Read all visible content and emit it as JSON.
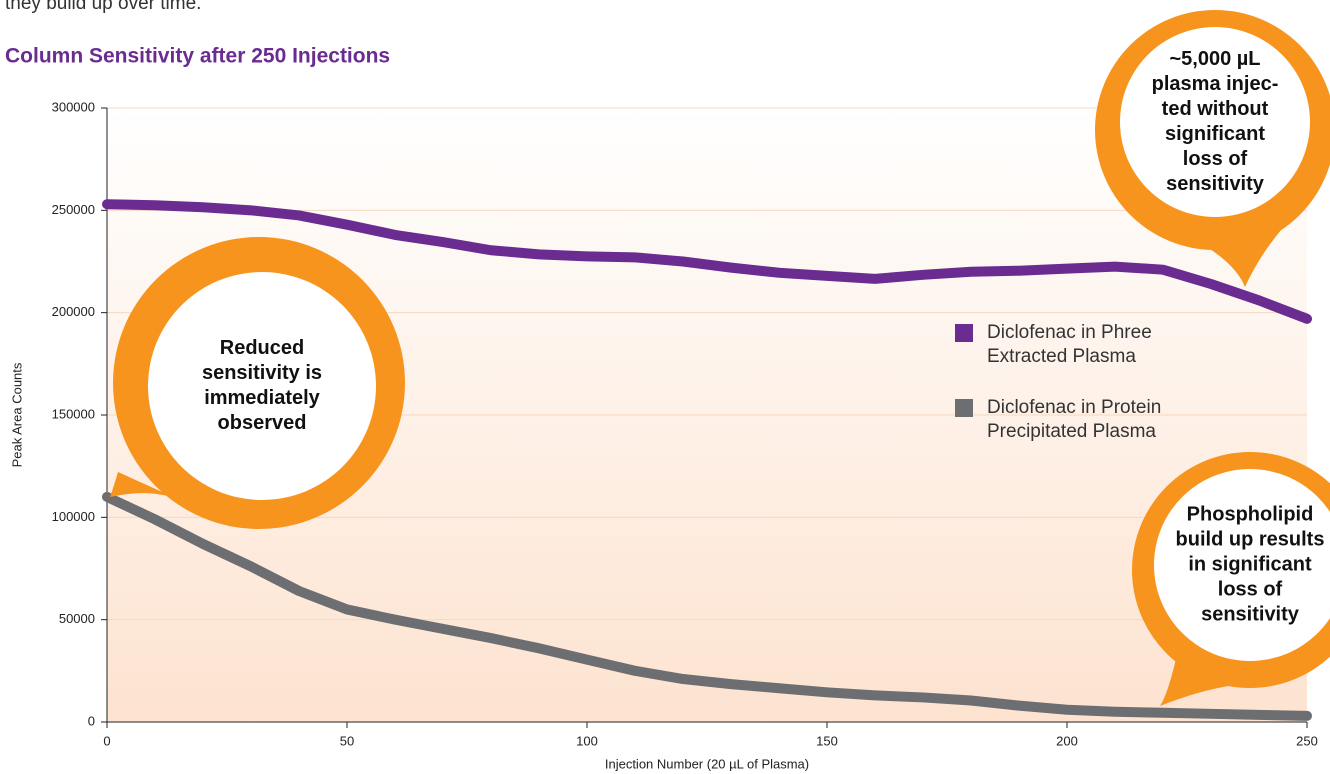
{
  "intro": "they build up over time.",
  "chart_data": {
    "type": "line",
    "title": "Column Sensitivity after 250 Injections",
    "xlabel": "Injection Number (20 µL of Plasma)",
    "ylabel": "Peak Area Counts",
    "x": [
      0,
      10,
      20,
      30,
      40,
      50,
      60,
      70,
      80,
      90,
      100,
      110,
      120,
      130,
      140,
      150,
      160,
      170,
      180,
      190,
      200,
      210,
      220,
      230,
      240,
      250
    ],
    "series": [
      {
        "name": "Diclofenac in Phree Extracted Plasma",
        "color": "#6a2c91",
        "values": [
          253000,
          252500,
          251500,
          250000,
          247500,
          243000,
          238000,
          234500,
          230500,
          228500,
          227500,
          227000,
          225000,
          222000,
          219500,
          218000,
          216500,
          218500,
          220000,
          220500,
          221500,
          222500,
          221000,
          214000,
          206000,
          197000
        ]
      },
      {
        "name": "Diclofenac in Protein Precipitated Plasma",
        "color": "#6d6e71",
        "values": [
          110000,
          99000,
          87000,
          76000,
          64000,
          55000,
          50000,
          45500,
          41000,
          36000,
          30500,
          25000,
          21000,
          18500,
          16500,
          14500,
          13000,
          12000,
          10500,
          8000,
          6000,
          5000,
          4500,
          4000,
          3500,
          3000
        ]
      }
    ],
    "xlim": [
      0,
      250
    ],
    "xticks": [
      0,
      50,
      100,
      150,
      200,
      250
    ],
    "ylim": [
      0,
      300000
    ],
    "yticks": [
      0,
      50000,
      100000,
      150000,
      200000,
      250000,
      300000
    ],
    "grid": true,
    "annotations": [
      {
        "lines": [
          "Reduced",
          "sensitivity is",
          "immediately",
          "observed"
        ]
      },
      {
        "lines": [
          "~5,000 µL",
          "plasma injec-",
          "ted without",
          "significant",
          "loss of",
          "sensitivity"
        ]
      },
      {
        "lines": [
          "Phospholipid",
          "build up results",
          "in significant",
          "loss of",
          "sensitivity"
        ]
      }
    ]
  }
}
